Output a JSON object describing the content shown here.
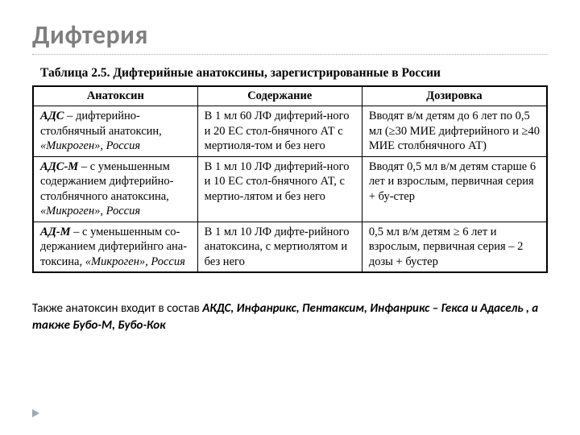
{
  "title": "Дифтерия",
  "tableCaption": "Таблица 2.5. Дифтерийные анатоксины, зарегистрированные в России",
  "headers": {
    "c1": "Анатоксин",
    "c2": "Содержание",
    "c3": "Дозировка"
  },
  "rows": [
    {
      "name": "АДС",
      "desc": " – дифтерийно-столбнячный анатоксин, ",
      "maker": "«Микроген», Россия",
      "content": "В 1 мл 60 ЛФ дифтерий-ного и 20 ЕС стол-бнячного АТ с мертиоля-том и без него",
      "dose": "Вводят в/м детям до 6 лет по 0,5 мл (≥30 МИЕ дифтерийного и ≥40 МИЕ столбнячного АТ)"
    },
    {
      "name": "АДС-М",
      "desc": " – с уменьшенным содержанием дифтерийно-столбнячного анатоксина, ",
      "maker": "«Микроген», Россия",
      "content": "В 1 мл 10 ЛФ дифтерий-ного и 10 ЕС стол-бнячного АТ, с мертио-лятом и без него",
      "dose": "Вводят 0,5 мл в/м детям старше 6 лет и взрослым, первичная серия + бу-стер"
    },
    {
      "name": "АД-М",
      "desc": " – с уменьшенным со-держанием дифтерийнго ана-токсина, ",
      "maker": "«Микроген», Россия",
      "content": "В 1 мл 10 ЛФ дифте-рийного анатоксина, с мертиолятом и без него",
      "dose": "0,5 мл в/м детям ≥ 6 лет и взрослым, первичная серия – 2 дозы + бустер"
    }
  ],
  "footnote": {
    "lead": "Также анатоксин входит в состав ",
    "em": "АКДС, Инфанрикс, Пентаксим, Инфанрикс – Гекса и Адасель , а также Бубо-М, Бубо-Кок"
  }
}
